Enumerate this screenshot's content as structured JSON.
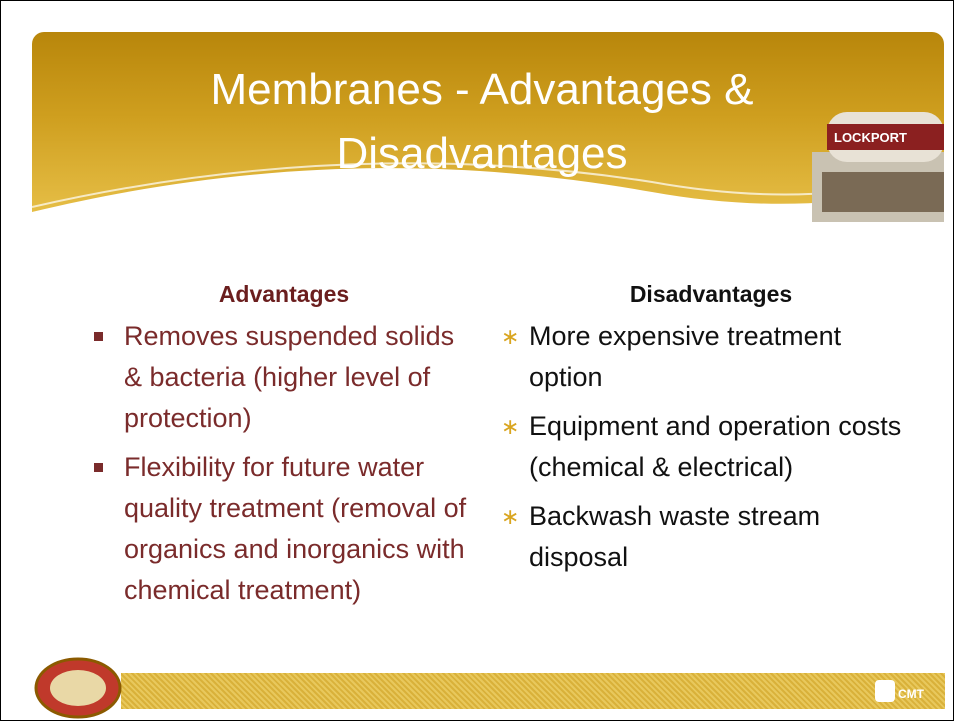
{
  "header": {
    "title": "Membranes - Advantages & Disadvantages",
    "tower_text": "LOCKPORT"
  },
  "advantages": {
    "heading": "Advantages",
    "items": [
      "Removes suspended solids & bacteria (higher level of protection)",
      "Flexibility for future water quality treatment (removal of organics and inorganics with chemical treatment)"
    ]
  },
  "disadvantages": {
    "heading": "Disadvantages",
    "items": [
      "More expensive treatment option",
      "Equipment and operation costs (chemical & electrical)",
      "Backwash waste stream disposal"
    ]
  },
  "footer": {
    "logo_text": "CMT"
  }
}
